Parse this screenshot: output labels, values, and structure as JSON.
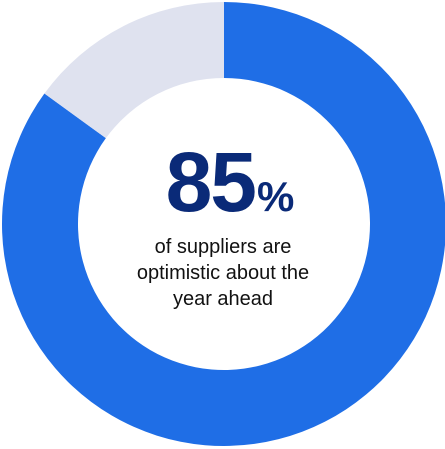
{
  "chart_data": {
    "type": "pie",
    "style": "donut",
    "slices": [
      {
        "label": "",
        "value": 85,
        "color": "#1f6ee6"
      },
      {
        "label": "",
        "value": 15,
        "color": "#dfe2ef"
      }
    ],
    "center_value": "85",
    "center_unit": "%",
    "caption_lines": [
      "of suppliers are",
      "optimistic about the",
      "year ahead"
    ],
    "title": "",
    "legend": "none"
  }
}
